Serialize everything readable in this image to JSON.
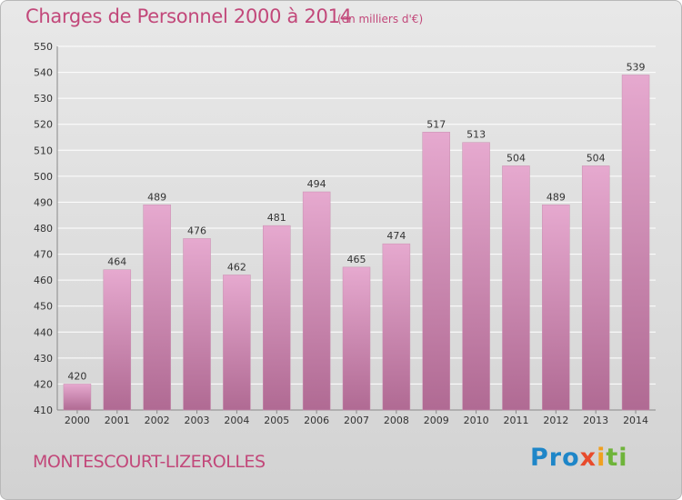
{
  "header": {
    "title": "Charges de Personnel 2000 à 2014",
    "subtitle": "(en milliers d'€)"
  },
  "footer": {
    "place": "MONTESCOURT-LIZEROLLES",
    "logo": [
      "Pro",
      "x",
      "i",
      "ti"
    ]
  },
  "colors": {
    "text": "#c2487a",
    "bar_top": "#e6a9cf",
    "bar_bottom": "#b06a93",
    "grid": "#ffffff"
  },
  "chart_data": {
    "type": "bar",
    "categories": [
      "2000",
      "2001",
      "2002",
      "2003",
      "2004",
      "2005",
      "2006",
      "2007",
      "2008",
      "2009",
      "2010",
      "2011",
      "2012",
      "2013",
      "2014"
    ],
    "values": [
      420,
      464,
      489,
      476,
      462,
      481,
      494,
      465,
      474,
      517,
      513,
      504,
      489,
      504,
      539
    ],
    "ylim": [
      410,
      550
    ],
    "yticks": [
      410,
      420,
      430,
      440,
      450,
      460,
      470,
      480,
      490,
      500,
      510,
      520,
      530,
      540,
      550
    ],
    "grid": true,
    "data_labels": true
  }
}
